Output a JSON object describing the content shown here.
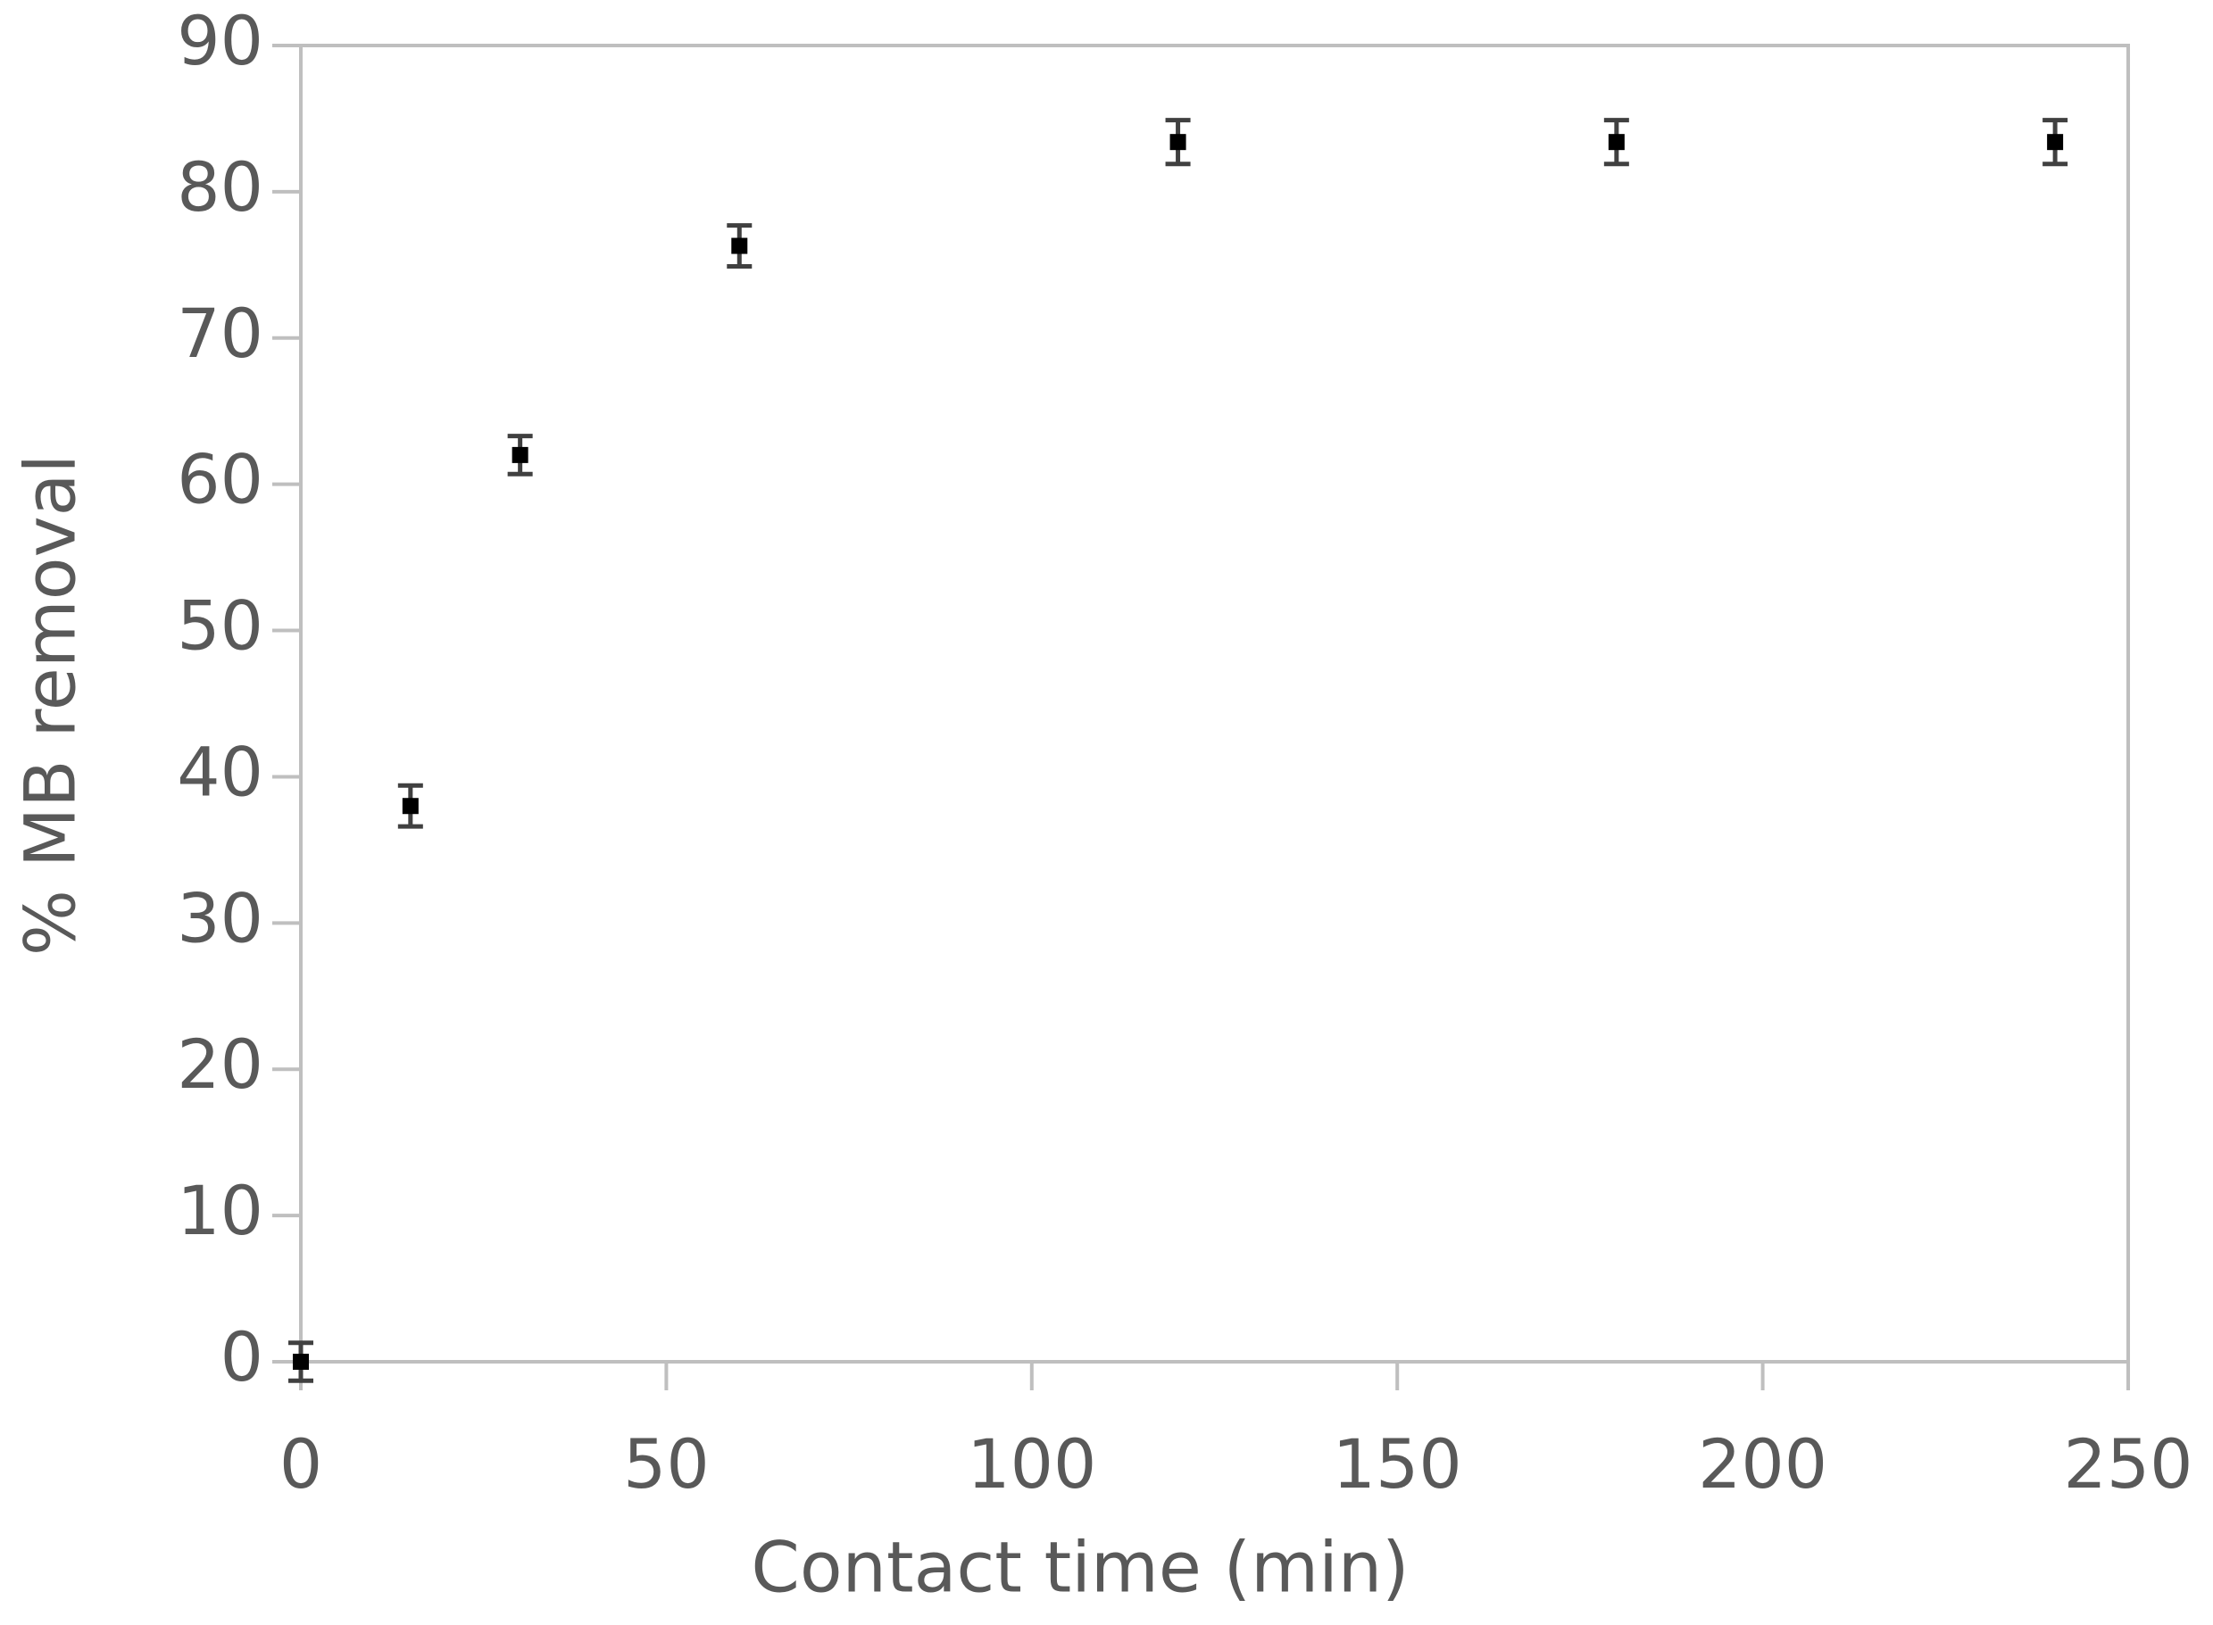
{
  "chart_data": {
    "type": "scatter",
    "x_label": "Contact time (min)",
    "y_label": "% MB removal",
    "x": [
      0,
      15,
      30,
      60,
      120,
      180,
      240
    ],
    "values": [
      0,
      38,
      62,
      76.3,
      83.4,
      83.4,
      83.4
    ],
    "errors": [
      1.3,
      1.4,
      1.3,
      1.4,
      1.5,
      1.5,
      1.5
    ],
    "color": "#000000",
    "xlim": [
      0,
      250
    ],
    "xticks": [
      0,
      50,
      100,
      150,
      200,
      250
    ],
    "ylim": [
      0,
      90
    ],
    "yticks": [
      0,
      10,
      20,
      30,
      40,
      50,
      60,
      70,
      80,
      90
    ],
    "grid": false
  }
}
